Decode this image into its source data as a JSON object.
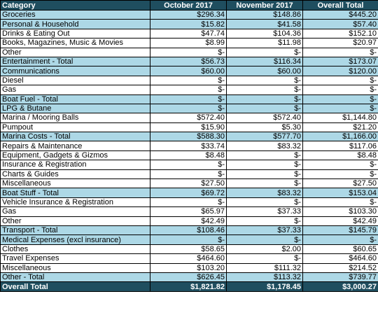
{
  "headers": [
    "Category",
    "October 2017",
    "November 2017",
    "Overall Total"
  ],
  "colors": {
    "header_bg": "#1f4e5f",
    "header_text": "#ffffff",
    "highlight_row": "#add8e6",
    "plain_row": "#ffffff"
  },
  "rows": [
    {
      "category": "Groceries",
      "oct": "$296.34",
      "nov": "$148.86",
      "total": "$445.20",
      "highlight": true
    },
    {
      "category": "Personal & Household",
      "oct": "$15.82",
      "nov": "$41.58",
      "total": "$57.40",
      "highlight": true
    },
    {
      "category": "Drinks & Eating Out",
      "oct": "$47.74",
      "nov": "$104.36",
      "total": "$152.10",
      "highlight": false
    },
    {
      "category": "Books, Magazines, Music & Movies",
      "oct": "$8.99",
      "nov": "$11.98",
      "total": "$20.97",
      "highlight": false
    },
    {
      "category": "Other",
      "oct": "$-",
      "nov": "$-",
      "total": "$-",
      "highlight": false
    },
    {
      "category": "Entertainment - Total",
      "oct": "$56.73",
      "nov": "$116.34",
      "total": "$173.07",
      "highlight": true
    },
    {
      "category": "Communications",
      "oct": "$60.00",
      "nov": "$60.00",
      "total": "$120.00",
      "highlight": true
    },
    {
      "category": "Diesel",
      "oct": "$-",
      "nov": "$-",
      "total": "$-",
      "highlight": false
    },
    {
      "category": "Gas",
      "oct": "$-",
      "nov": "$-",
      "total": "$-",
      "highlight": false
    },
    {
      "category": "Boat Fuel - Total",
      "oct": "$-",
      "nov": "$-",
      "total": "$-",
      "highlight": true
    },
    {
      "category": "LPG & Butane",
      "oct": "$-",
      "nov": "$-",
      "total": "$-",
      "highlight": true
    },
    {
      "category": "Marina / Mooring Balls",
      "oct": "$572.40",
      "nov": "$572.40",
      "total": "$1,144.80",
      "highlight": false
    },
    {
      "category": "Pumpout",
      "oct": "$15.90",
      "nov": "$5.30",
      "total": "$21.20",
      "highlight": false
    },
    {
      "category": "Marina Costs - Total",
      "oct": "$588.30",
      "nov": "$577.70",
      "total": "$1,166.00",
      "highlight": true
    },
    {
      "category": "Repairs & Maintenance",
      "oct": "$33.74",
      "nov": "$83.32",
      "total": "$117.06",
      "highlight": false
    },
    {
      "category": "Equipment, Gadgets & Gizmos",
      "oct": "$8.48",
      "nov": "$-",
      "total": "$8.48",
      "highlight": false
    },
    {
      "category": "Insurance & Registration",
      "oct": "$-",
      "nov": "$-",
      "total": "$-",
      "highlight": false
    },
    {
      "category": "Charts & Guides",
      "oct": "$-",
      "nov": "$-",
      "total": "$-",
      "highlight": false
    },
    {
      "category": "Miscellaneous",
      "oct": "$27.50",
      "nov": "$-",
      "total": "$27.50",
      "highlight": false
    },
    {
      "category": "Boat Stuff - Total",
      "oct": "$69.72",
      "nov": "$83.32",
      "total": "$153.04",
      "highlight": true
    },
    {
      "category": "Vehicle Insurance & Registration",
      "oct": "$-",
      "nov": "$-",
      "total": "$-",
      "highlight": false
    },
    {
      "category": "Gas",
      "oct": "$65.97",
      "nov": "$37.33",
      "total": "$103.30",
      "highlight": false
    },
    {
      "category": "Other",
      "oct": "$42.49",
      "nov": "$-",
      "total": "$42.49",
      "highlight": false
    },
    {
      "category": "Transport - Total",
      "oct": "$108.46",
      "nov": "$37.33",
      "total": "$145.79",
      "highlight": true
    },
    {
      "category": "Medical Expenses (excl insurance)",
      "oct": "$-",
      "nov": "$-",
      "total": "$-",
      "highlight": true
    },
    {
      "category": "Clothes",
      "oct": "$58.65",
      "nov": "$2.00",
      "total": "$60.65",
      "highlight": false
    },
    {
      "category": "Travel Expenses",
      "oct": "$464.60",
      "nov": "$-",
      "total": "$464.60",
      "highlight": false
    },
    {
      "category": "Miscellaneous",
      "oct": "$103.20",
      "nov": "$111.32",
      "total": "$214.52",
      "highlight": false
    },
    {
      "category": "Other - Total",
      "oct": "$626.45",
      "nov": "$113.32",
      "total": "$739.77",
      "highlight": true
    }
  ],
  "overall": {
    "category": "Overall Total",
    "oct": "$1,821.82",
    "nov": "$1,178.45",
    "total": "$3,000.27"
  }
}
